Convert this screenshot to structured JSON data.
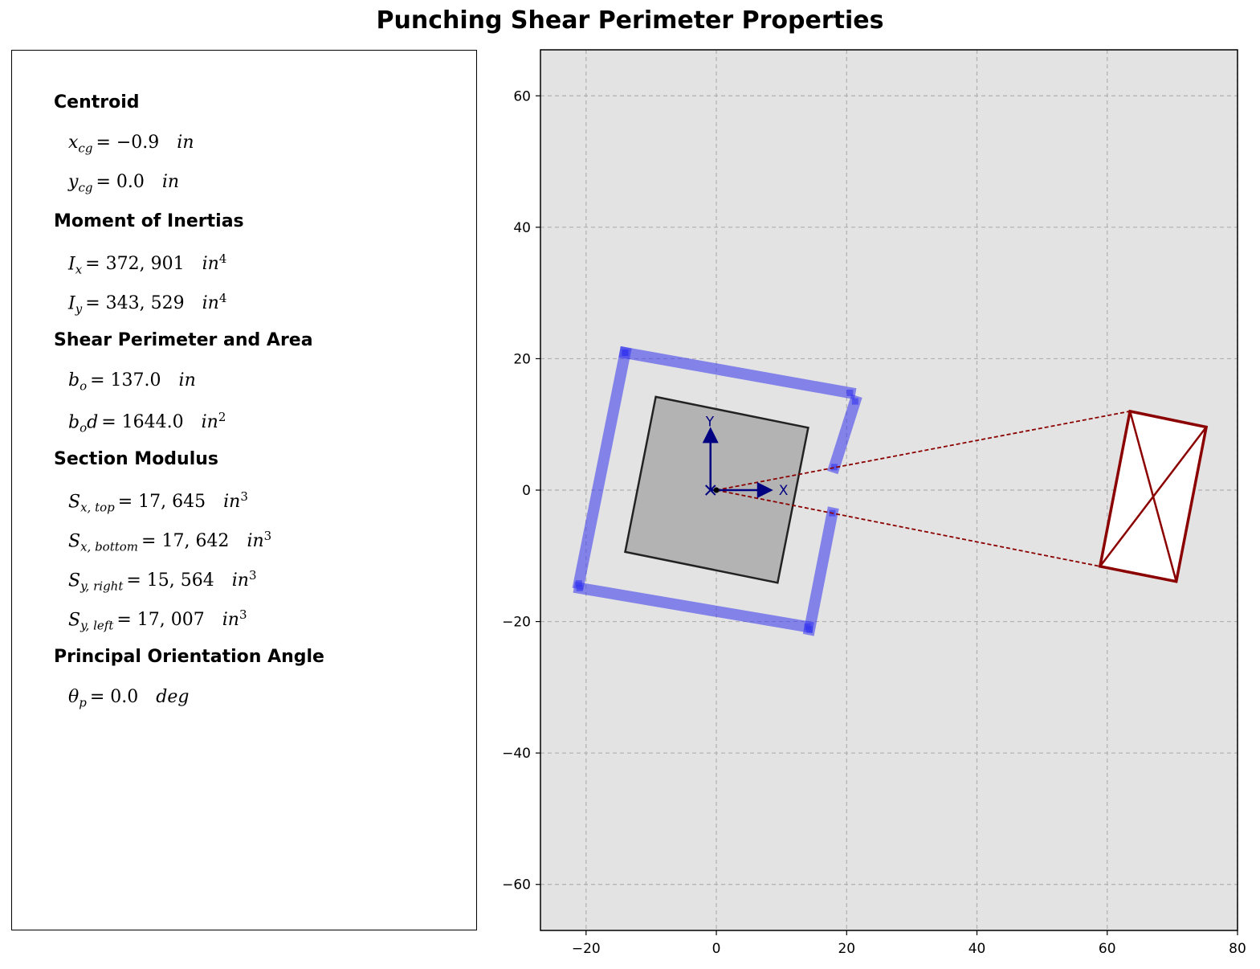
{
  "title": "Punching Shear Perimeter Properties",
  "sections": [
    {
      "heading": "Centroid",
      "lines": [
        {
          "sym": "x",
          "sub": "cg",
          "value": "= −0.9",
          "unit": "in",
          "sup": ""
        },
        {
          "sym": "y",
          "sub": "cg",
          "value": "= 0.0",
          "unit": "in",
          "sup": ""
        }
      ]
    },
    {
      "heading": "Moment of Inertias",
      "lines": [
        {
          "sym": "I",
          "sub": "x",
          "value": "= 372, 901",
          "unit": "in",
          "sup": "4"
        },
        {
          "sym": "I",
          "sub": "y",
          "value": "= 343, 529",
          "unit": "in",
          "sup": "4"
        }
      ]
    },
    {
      "heading": "Shear Perimeter and Area",
      "lines": [
        {
          "sym": "b",
          "sub": "o",
          "value": "= 137.0",
          "unit": "in",
          "sup": ""
        },
        {
          "sym": "b",
          "sub": "o",
          "sym2": "d",
          "value": "= 1644.0",
          "unit": "in",
          "sup": "2"
        }
      ]
    },
    {
      "heading": "Section Modulus",
      "lines": [
        {
          "sym": "S",
          "sub": "x, top",
          "value": "= 17, 645",
          "unit": "in",
          "sup": "3"
        },
        {
          "sym": "S",
          "sub": "x, bottom",
          "value": "= 17, 642",
          "unit": "in",
          "sup": "3"
        },
        {
          "sym": "S",
          "sub": "y, right",
          "value": "= 15, 564",
          "unit": "in",
          "sup": "3"
        },
        {
          "sym": "S",
          "sub": "y, left",
          "value": "= 17, 007",
          "unit": "in",
          "sup": "3"
        }
      ]
    },
    {
      "heading": "Principal Orientation Angle",
      "lines": [
        {
          "sym": "θ",
          "sub": "p",
          "value": "= 0.0",
          "unit": "deg",
          "sup": ""
        }
      ]
    }
  ],
  "chart_data": {
    "type": "scatter",
    "xlim": [
      -27,
      80
    ],
    "ylim": [
      -67,
      67
    ],
    "xticks": [
      -20,
      0,
      20,
      40,
      60,
      80
    ],
    "yticks": [
      -60,
      -40,
      -20,
      0,
      20,
      40,
      60
    ],
    "grid": true,
    "background": "#e3e3e3",
    "column_polygon": [
      [
        -9.3,
        14.2
      ],
      [
        14.1,
        9.5
      ],
      [
        9.4,
        -14.1
      ],
      [
        -14.0,
        -9.4
      ]
    ],
    "perimeter_segments": [
      [
        [
          -14.0,
          20.9
        ],
        [
          -21.1,
          -14.2
        ]
      ],
      [
        [
          -14.0,
          20.9
        ],
        [
          20.5,
          14.8
        ]
      ],
      [
        [
          21.3,
          13.5
        ],
        [
          18.1,
          3.5
        ]
      ],
      [
        [
          17.8,
          -3.5
        ],
        [
          14.3,
          -21.2
        ]
      ],
      [
        [
          -21.0,
          -14.9
        ],
        [
          14.0,
          -20.8
        ]
      ]
    ],
    "perimeter_color": "#3333ee",
    "centroid": [
      -0.9,
      0.0
    ],
    "origin": [
      0,
      0
    ],
    "axis_arrows": {
      "x_label": "X",
      "y_label": "Y",
      "length": 9,
      "color": "#000080"
    },
    "stress_block": {
      "color": "#8b0000",
      "polygon": [
        [
          63.5,
          12.0
        ],
        [
          75.2,
          9.6
        ],
        [
          70.6,
          -13.9
        ],
        [
          58.9,
          -11.6
        ]
      ],
      "diagonals": [
        [
          [
            63.5,
            12.0
          ],
          [
            70.6,
            -13.9
          ]
        ],
        [
          [
            75.2,
            9.6
          ],
          [
            58.9,
            -11.6
          ]
        ]
      ],
      "leaders": [
        [
          [
            0.0,
            0.0
          ],
          [
            63.5,
            12.0
          ]
        ],
        [
          [
            0.0,
            0.0
          ],
          [
            58.9,
            -11.6
          ]
        ]
      ]
    }
  }
}
